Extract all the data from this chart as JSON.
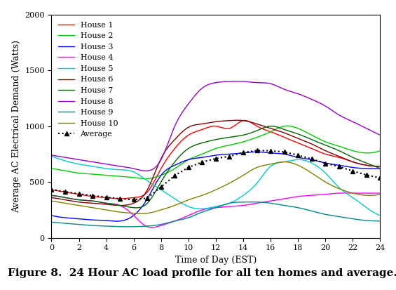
{
  "title": "",
  "xlabel": "Time of Day (EST)",
  "ylabel": "Average AC Electrical Demand (Watts)",
  "caption": "Figure 8.  24 Hour AC load profile for all ten homes and average.",
  "xlim": [
    0,
    24
  ],
  "ylim": [
    0,
    2000
  ],
  "xticks": [
    0,
    2,
    4,
    6,
    8,
    10,
    12,
    14,
    16,
    18,
    20,
    22,
    24
  ],
  "yticks": [
    0,
    500,
    1000,
    1500,
    2000
  ],
  "houses": [
    {
      "label": "House 1",
      "color": "#ff0000",
      "lw": 1.0,
      "points_x": [
        0,
        1,
        2,
        3,
        4,
        5,
        6,
        7,
        8,
        9,
        10,
        11,
        12,
        13,
        14,
        15,
        16,
        17,
        18,
        19,
        20,
        21,
        22,
        23,
        24
      ],
      "points_y": [
        430,
        410,
        390,
        370,
        360,
        350,
        360,
        410,
        620,
        800,
        920,
        970,
        1000,
        980,
        1050,
        1000,
        950,
        900,
        850,
        800,
        750,
        720,
        680,
        650,
        640
      ]
    },
    {
      "label": "House 2",
      "color": "#00cc00",
      "lw": 1.0,
      "points_x": [
        0,
        1,
        2,
        3,
        4,
        5,
        6,
        7,
        8,
        9,
        10,
        11,
        12,
        13,
        14,
        15,
        16,
        17,
        18,
        19,
        20,
        21,
        22,
        23,
        24
      ],
      "points_y": [
        620,
        600,
        580,
        570,
        560,
        550,
        540,
        530,
        560,
        620,
        700,
        750,
        800,
        830,
        860,
        900,
        950,
        1000,
        980,
        920,
        860,
        820,
        780,
        760,
        780
      ]
    },
    {
      "label": "House 3",
      "color": "#0000ff",
      "lw": 1.0,
      "points_x": [
        0,
        1,
        2,
        3,
        4,
        5,
        6,
        7,
        8,
        9,
        10,
        11,
        12,
        13,
        14,
        15,
        16,
        17,
        18,
        19,
        20,
        21,
        22,
        23,
        24
      ],
      "points_y": [
        200,
        180,
        170,
        160,
        155,
        150,
        200,
        350,
        560,
        650,
        700,
        720,
        740,
        750,
        760,
        770,
        760,
        750,
        720,
        700,
        670,
        650,
        630,
        620,
        620
      ]
    },
    {
      "label": "House 4",
      "color": "#ff00ff",
      "lw": 1.0,
      "points_x": [
        0,
        1,
        2,
        3,
        4,
        5,
        6,
        7,
        8,
        9,
        10,
        11,
        12,
        13,
        14,
        15,
        16,
        17,
        18,
        19,
        20,
        21,
        22,
        23,
        24
      ],
      "points_y": [
        380,
        360,
        340,
        330,
        310,
        290,
        200,
        100,
        110,
        150,
        200,
        250,
        270,
        280,
        290,
        310,
        330,
        350,
        370,
        380,
        390,
        400,
        400,
        400,
        400
      ]
    },
    {
      "label": "House 5",
      "color": "#00cccc",
      "lw": 1.0,
      "points_x": [
        0,
        1,
        2,
        3,
        4,
        5,
        6,
        7,
        8,
        9,
        10,
        11,
        12,
        13,
        14,
        15,
        16,
        17,
        18,
        19,
        20,
        21,
        22,
        23,
        24
      ],
      "points_y": [
        730,
        690,
        660,
        640,
        620,
        610,
        590,
        510,
        430,
        350,
        280,
        260,
        280,
        310,
        380,
        490,
        640,
        680,
        700,
        670,
        580,
        450,
        360,
        270,
        200
      ]
    },
    {
      "label": "House 6",
      "color": "#800000",
      "lw": 1.0,
      "points_x": [
        0,
        1,
        2,
        3,
        4,
        5,
        6,
        7,
        8,
        9,
        10,
        11,
        12,
        13,
        14,
        15,
        16,
        17,
        18,
        19,
        20,
        21,
        22,
        23,
        24
      ],
      "points_y": [
        360,
        340,
        320,
        310,
        300,
        290,
        310,
        430,
        710,
        880,
        990,
        1020,
        1040,
        1050,
        1050,
        1020,
        980,
        940,
        890,
        840,
        780,
        730,
        680,
        650,
        640
      ]
    },
    {
      "label": "House 7",
      "color": "#006600",
      "lw": 1.0,
      "points_x": [
        0,
        1,
        2,
        3,
        4,
        5,
        6,
        7,
        8,
        9,
        10,
        11,
        12,
        13,
        14,
        15,
        16,
        17,
        18,
        19,
        20,
        21,
        22,
        23,
        24
      ],
      "points_y": [
        380,
        360,
        340,
        330,
        310,
        290,
        270,
        310,
        500,
        680,
        800,
        850,
        880,
        900,
        920,
        960,
        1000,
        970,
        930,
        880,
        830,
        780,
        720,
        670,
        620
      ]
    },
    {
      "label": "House 8",
      "color": "#9900cc",
      "lw": 1.0,
      "points_x": [
        0,
        1,
        2,
        3,
        4,
        5,
        6,
        7,
        8,
        9,
        10,
        11,
        12,
        13,
        14,
        15,
        16,
        17,
        18,
        19,
        20,
        21,
        22,
        23,
        24
      ],
      "points_y": [
        740,
        720,
        700,
        680,
        660,
        640,
        620,
        600,
        700,
        1000,
        1200,
        1340,
        1390,
        1400,
        1400,
        1390,
        1380,
        1330,
        1290,
        1240,
        1180,
        1100,
        1040,
        980,
        920
      ]
    },
    {
      "label": "House 9",
      "color": "#008888",
      "lw": 1.0,
      "points_x": [
        0,
        1,
        2,
        3,
        4,
        5,
        6,
        7,
        8,
        9,
        10,
        11,
        12,
        13,
        14,
        15,
        16,
        17,
        18,
        19,
        20,
        21,
        22,
        23,
        24
      ],
      "points_y": [
        140,
        130,
        120,
        110,
        105,
        100,
        100,
        105,
        120,
        150,
        180,
        230,
        270,
        310,
        320,
        320,
        310,
        290,
        270,
        240,
        210,
        190,
        170,
        155,
        150
      ]
    },
    {
      "label": "House 10",
      "color": "#808000",
      "lw": 1.0,
      "points_x": [
        0,
        1,
        2,
        3,
        4,
        5,
        6,
        7,
        8,
        9,
        10,
        11,
        12,
        13,
        14,
        15,
        16,
        17,
        18,
        19,
        20,
        21,
        22,
        23,
        24
      ],
      "points_y": [
        330,
        310,
        290,
        270,
        250,
        230,
        220,
        220,
        250,
        290,
        340,
        380,
        430,
        490,
        560,
        630,
        660,
        680,
        650,
        580,
        500,
        440,
        400,
        380,
        390
      ]
    },
    {
      "label": "Average",
      "color": "#000000",
      "lw": 1.5,
      "linestyle": "dotted",
      "marker": "^",
      "markersize": 4,
      "points_x": [
        0,
        1,
        2,
        3,
        4,
        5,
        6,
        7,
        8,
        9,
        10,
        11,
        12,
        13,
        14,
        15,
        16,
        17,
        18,
        19,
        20,
        21,
        22,
        23,
        24
      ],
      "points_y": [
        433,
        413,
        393,
        378,
        363,
        350,
        341,
        356,
        456,
        557,
        631,
        678,
        710,
        730,
        764,
        782,
        780,
        769,
        740,
        706,
        667,
        637,
        598,
        563,
        536
      ]
    }
  ],
  "legend_fontsize": 8,
  "axis_fontsize": 9,
  "caption_fontsize": 11
}
